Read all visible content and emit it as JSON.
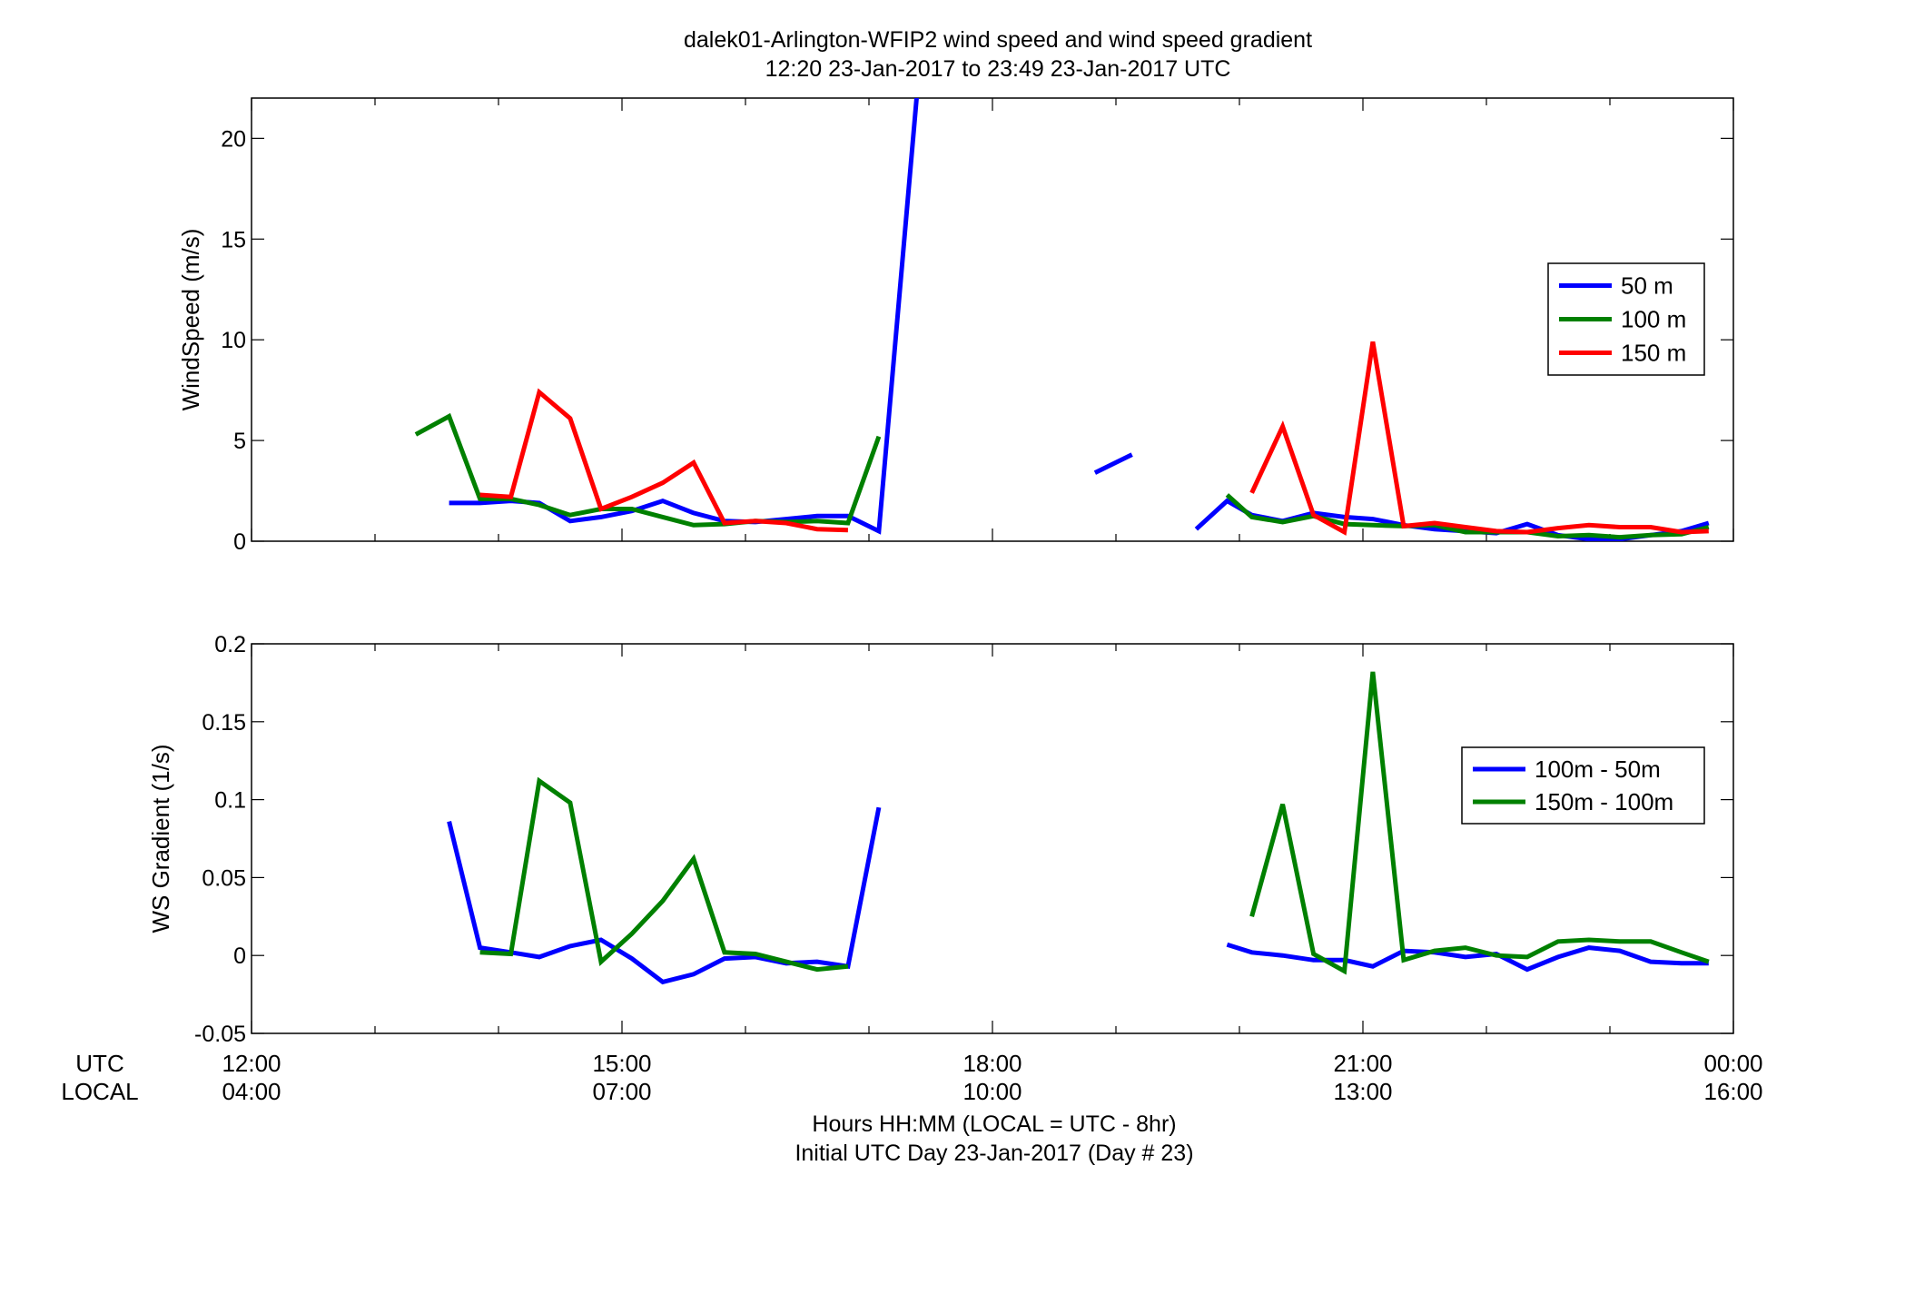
{
  "title": {
    "line1": "dalek01-Arlington-WFIP2  wind speed and wind speed gradient",
    "line2": "12:20 23-Jan-2017 to 23:49 23-Jan-2017  UTC"
  },
  "xaxis": {
    "row_labels": [
      "UTC",
      "LOCAL"
    ],
    "utc_ticks": [
      "12:00",
      "15:00",
      "18:00",
      "21:00",
      "00:00"
    ],
    "local_ticks": [
      "04:00",
      "07:00",
      "10:00",
      "13:00",
      "16:00"
    ],
    "label_line1": "Hours HH:MM  (LOCAL = UTC - 8hr)",
    "label_line2": "Initial UTC Day 23-Jan-2017 (Day # 23)"
  },
  "chart_data": [
    {
      "type": "line",
      "ylabel": "WindSpeed (m/s)",
      "xlim": [
        12,
        24
      ],
      "ylim": [
        0,
        22
      ],
      "yticks": [
        "0",
        "5",
        "10",
        "15",
        "20"
      ],
      "legend_position": "right",
      "series": [
        {
          "name": "50 m",
          "color": "#0000ff",
          "segments": [
            [
              [
                13.6,
                1.9
              ],
              [
                13.85,
                1.9
              ],
              [
                14.1,
                2.0
              ],
              [
                14.33,
                1.9
              ],
              [
                14.58,
                1.0
              ],
              [
                14.83,
                1.2
              ],
              [
                15.08,
                1.5
              ],
              [
                15.33,
                2.0
              ],
              [
                15.58,
                1.4
              ],
              [
                15.83,
                1.0
              ],
              [
                16.08,
                0.95
              ],
              [
                16.33,
                1.1
              ],
              [
                16.58,
                1.25
              ],
              [
                16.83,
                1.25
              ],
              [
                17.08,
                0.5
              ],
              [
                17.4,
                23.0
              ]
            ],
            [
              [
                18.83,
                3.4
              ],
              [
                19.13,
                4.3
              ]
            ],
            [
              [
                19.65,
                0.6
              ],
              [
                19.9,
                2.0
              ],
              [
                20.1,
                1.3
              ],
              [
                20.35,
                1.0
              ],
              [
                20.6,
                1.4
              ],
              [
                20.85,
                1.2
              ],
              [
                21.08,
                1.1
              ],
              [
                21.33,
                0.8
              ],
              [
                21.58,
                0.6
              ],
              [
                21.83,
                0.5
              ],
              [
                22.08,
                0.4
              ],
              [
                22.33,
                0.85
              ],
              [
                22.58,
                0.3
              ],
              [
                22.83,
                0.1
              ],
              [
                23.08,
                0.1
              ],
              [
                23.33,
                0.3
              ],
              [
                23.58,
                0.5
              ],
              [
                23.8,
                0.9
              ]
            ]
          ]
        },
        {
          "name": "100 m",
          "color": "#008000",
          "segments": [
            [
              [
                13.33,
                5.3
              ],
              [
                13.6,
                6.2
              ],
              [
                13.85,
                2.1
              ],
              [
                14.1,
                2.1
              ],
              [
                14.33,
                1.8
              ],
              [
                14.58,
                1.3
              ],
              [
                14.83,
                1.6
              ],
              [
                15.08,
                1.6
              ],
              [
                15.33,
                1.2
              ],
              [
                15.58,
                0.8
              ],
              [
                15.83,
                0.85
              ],
              [
                16.08,
                1.0
              ],
              [
                16.33,
                0.95
              ],
              [
                16.58,
                1.0
              ],
              [
                16.83,
                0.9
              ],
              [
                17.08,
                5.2
              ]
            ],
            [
              [
                19.9,
                2.3
              ],
              [
                20.1,
                1.2
              ],
              [
                20.35,
                0.95
              ],
              [
                20.6,
                1.25
              ],
              [
                20.85,
                0.85
              ],
              [
                21.08,
                0.8
              ],
              [
                21.33,
                0.75
              ],
              [
                21.58,
                0.8
              ],
              [
                21.83,
                0.45
              ],
              [
                22.08,
                0.45
              ],
              [
                22.33,
                0.45
              ],
              [
                22.58,
                0.25
              ],
              [
                22.83,
                0.3
              ],
              [
                23.08,
                0.2
              ],
              [
                23.33,
                0.3
              ],
              [
                23.58,
                0.35
              ],
              [
                23.8,
                0.7
              ]
            ]
          ]
        },
        {
          "name": "150 m",
          "color": "#ff0000",
          "segments": [
            [
              [
                13.85,
                2.3
              ],
              [
                14.1,
                2.2
              ],
              [
                14.33,
                7.4
              ],
              [
                14.58,
                6.1
              ],
              [
                14.83,
                1.6
              ],
              [
                15.08,
                2.2
              ],
              [
                15.33,
                2.9
              ],
              [
                15.58,
                3.9
              ],
              [
                15.83,
                0.9
              ],
              [
                16.08,
                1.0
              ],
              [
                16.33,
                0.9
              ],
              [
                16.58,
                0.6
              ],
              [
                16.83,
                0.55
              ]
            ],
            [
              [
                20.1,
                2.4
              ],
              [
                20.35,
                5.7
              ],
              [
                20.6,
                1.3
              ],
              [
                20.85,
                0.45
              ],
              [
                21.08,
                9.9
              ],
              [
                21.33,
                0.75
              ],
              [
                21.58,
                0.9
              ],
              [
                21.83,
                0.7
              ],
              [
                22.08,
                0.5
              ],
              [
                22.33,
                0.45
              ],
              [
                22.58,
                0.65
              ],
              [
                22.83,
                0.8
              ],
              [
                23.08,
                0.7
              ],
              [
                23.33,
                0.7
              ],
              [
                23.58,
                0.45
              ],
              [
                23.8,
                0.5
              ]
            ]
          ]
        }
      ]
    },
    {
      "type": "line",
      "ylabel": "WS Gradient (1/s)",
      "xlim": [
        12,
        24
      ],
      "ylim": [
        -0.05,
        0.2
      ],
      "yticks": [
        "-0.05",
        "0",
        "0.05",
        "0.1",
        "0.15",
        "0.2"
      ],
      "legend_position": "right",
      "series": [
        {
          "name": "100m - 50m",
          "color": "#0000ff",
          "segments": [
            [
              [
                13.6,
                0.086
              ],
              [
                13.85,
                0.005
              ],
              [
                14.1,
                0.002
              ],
              [
                14.33,
                -0.001
              ],
              [
                14.58,
                0.006
              ],
              [
                14.83,
                0.01
              ],
              [
                15.08,
                -0.002
              ],
              [
                15.33,
                -0.017
              ],
              [
                15.58,
                -0.012
              ],
              [
                15.83,
                -0.002
              ],
              [
                16.08,
                -0.001
              ],
              [
                16.33,
                -0.005
              ],
              [
                16.58,
                -0.004
              ],
              [
                16.83,
                -0.007
              ],
              [
                17.08,
                0.095
              ]
            ],
            [
              [
                19.9,
                0.007
              ],
              [
                20.1,
                0.002
              ],
              [
                20.35,
                0.0
              ],
              [
                20.6,
                -0.003
              ],
              [
                20.85,
                -0.003
              ],
              [
                21.08,
                -0.007
              ],
              [
                21.33,
                0.003
              ],
              [
                21.58,
                0.002
              ],
              [
                21.83,
                -0.001
              ],
              [
                22.08,
                0.001
              ],
              [
                22.33,
                -0.009
              ],
              [
                22.58,
                -0.001
              ],
              [
                22.83,
                0.005
              ],
              [
                23.08,
                0.003
              ],
              [
                23.33,
                -0.004
              ],
              [
                23.58,
                -0.005
              ],
              [
                23.8,
                -0.005
              ]
            ]
          ]
        },
        {
          "name": "150m - 100m",
          "color": "#008000",
          "segments": [
            [
              [
                13.85,
                0.002
              ],
              [
                14.1,
                0.001
              ],
              [
                14.33,
                0.112
              ],
              [
                14.58,
                0.098
              ],
              [
                14.83,
                -0.004
              ],
              [
                15.08,
                0.014
              ],
              [
                15.33,
                0.035
              ],
              [
                15.58,
                0.062
              ],
              [
                15.83,
                0.002
              ],
              [
                16.08,
                0.001
              ],
              [
                16.33,
                -0.004
              ],
              [
                16.58,
                -0.009
              ],
              [
                16.83,
                -0.007
              ]
            ],
            [
              [
                20.1,
                0.025
              ],
              [
                20.35,
                0.097
              ],
              [
                20.6,
                0.001
              ],
              [
                20.85,
                -0.01
              ],
              [
                21.08,
                0.182
              ],
              [
                21.33,
                -0.003
              ],
              [
                21.58,
                0.003
              ],
              [
                21.83,
                0.005
              ],
              [
                22.08,
                0.0
              ],
              [
                22.33,
                -0.001
              ],
              [
                22.58,
                0.009
              ],
              [
                22.83,
                0.01
              ],
              [
                23.08,
                0.009
              ],
              [
                23.33,
                0.009
              ],
              [
                23.58,
                0.002
              ],
              [
                23.8,
                -0.004
              ]
            ]
          ]
        }
      ]
    }
  ]
}
